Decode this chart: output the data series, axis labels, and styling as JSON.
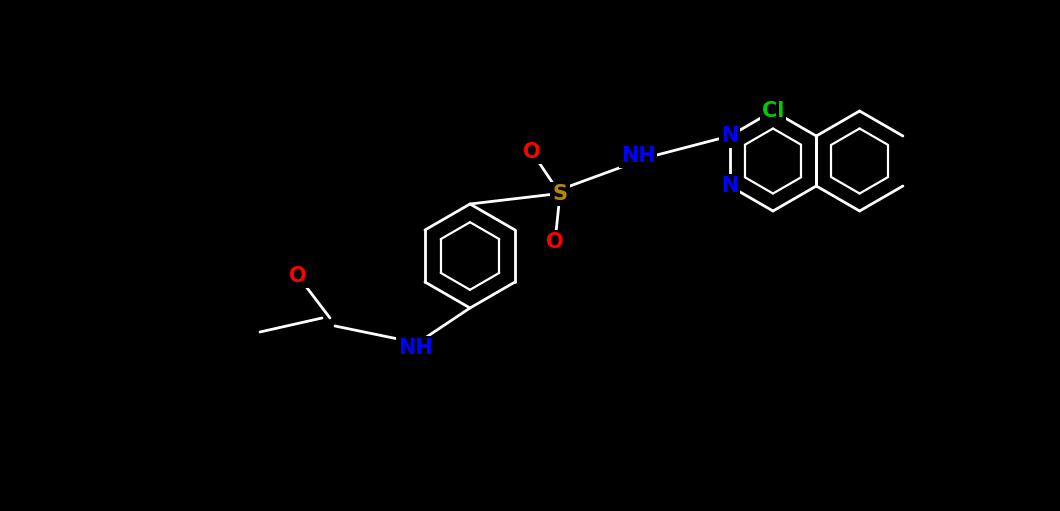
{
  "bg_color": "#000000",
  "bond_color": "#ffffff",
  "colors": {
    "C": "#ffffff",
    "N": "#0000ff",
    "O": "#ff0000",
    "S": "#b8860b",
    "Cl": "#00cc00"
  },
  "figsize": [
    10.6,
    5.11
  ],
  "dpi": 100,
  "lw": 2.0,
  "font_size": 15
}
